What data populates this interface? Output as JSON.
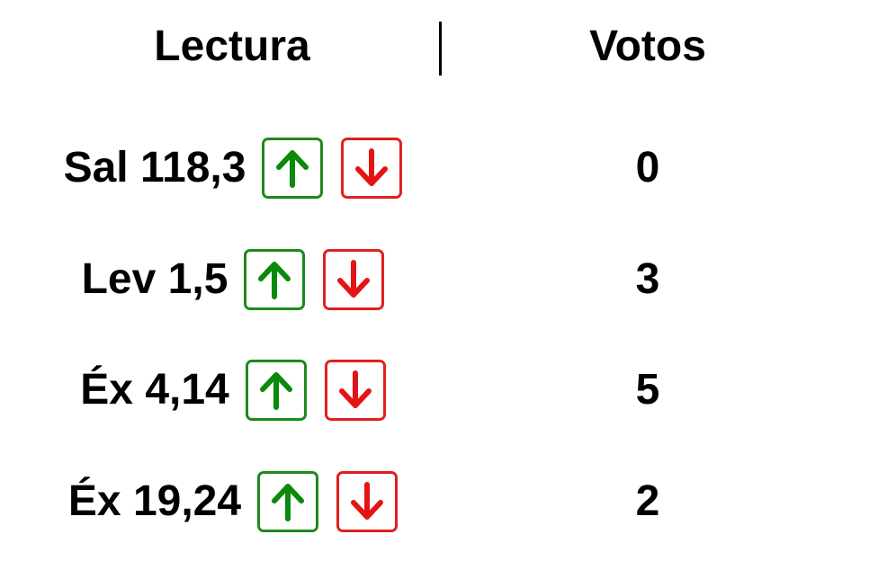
{
  "header": {
    "reading_label": "Lectura",
    "votes_label": "Votos"
  },
  "rows": [
    {
      "reading": "Sal 118,3",
      "votes": "0"
    },
    {
      "reading": "Lev 1,5",
      "votes": "3"
    },
    {
      "reading": "Éx 4,14",
      "votes": "5"
    },
    {
      "reading": "Éx 19,24",
      "votes": "2"
    }
  ],
  "icons": {
    "upvote": "arrow-up-icon",
    "downvote": "arrow-down-icon"
  },
  "colors": {
    "upvote": "#0a8a0a",
    "downvote": "#e51414",
    "text": "#000000"
  }
}
